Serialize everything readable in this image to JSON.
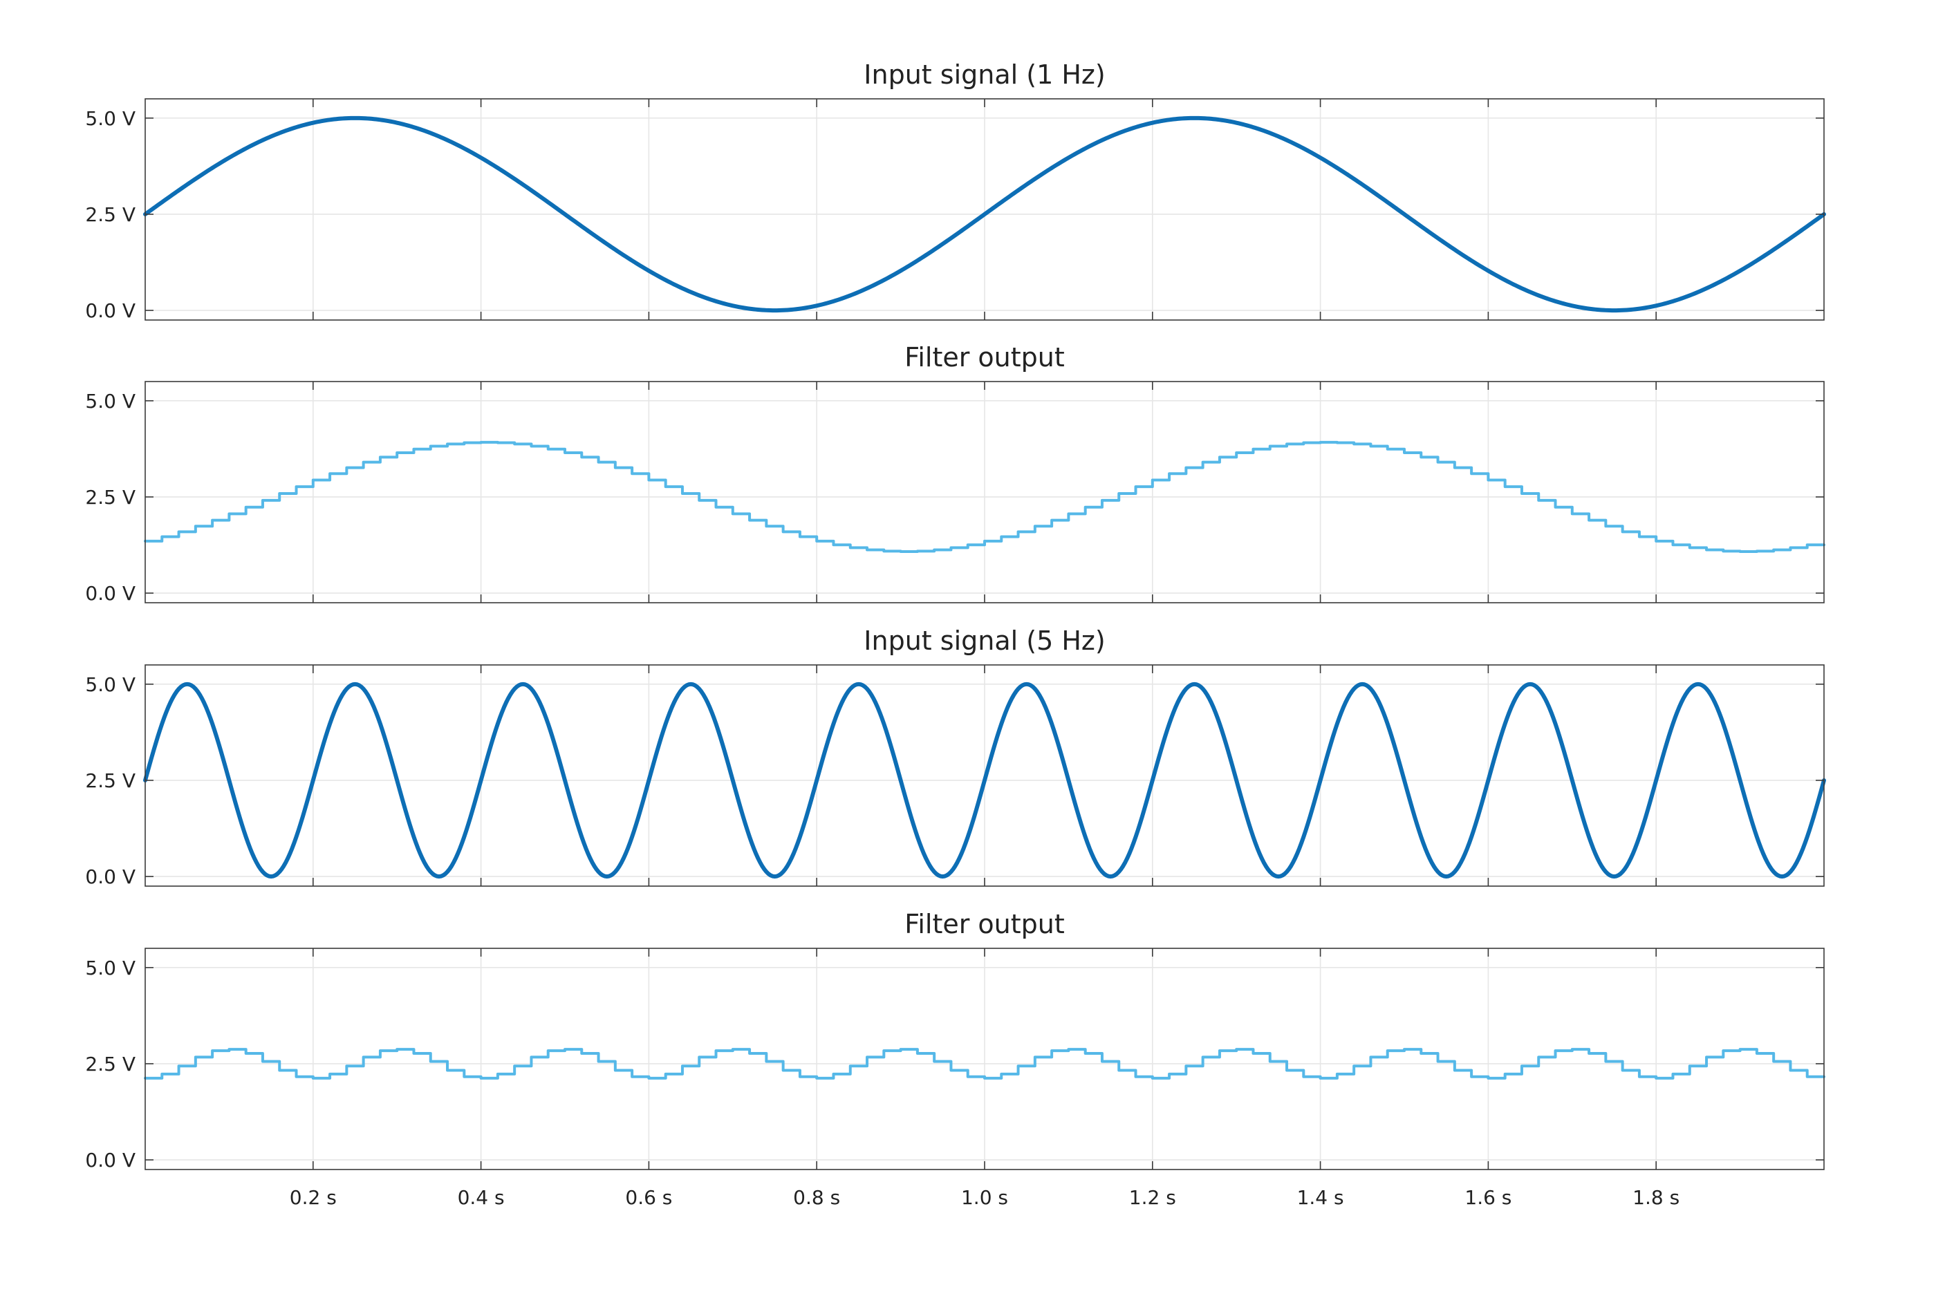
{
  "chart_data": [
    {
      "type": "line",
      "title": "Input signal (1 Hz)",
      "xlim": [
        0,
        2.0
      ],
      "ylim": [
        -0.25,
        5.5
      ],
      "x_ticks": [
        0.2,
        0.4,
        0.6,
        0.8,
        1.0,
        1.2,
        1.4,
        1.6,
        1.8
      ],
      "y_ticks": [
        0.0,
        2.5,
        5.0
      ],
      "y_tick_labels": [
        "0.0 V",
        "2.5 V",
        "5.0 V"
      ],
      "grid": true,
      "series": [
        {
          "kind": "sine",
          "offset": 2.5,
          "amplitude": 2.5,
          "frequency_hz": 1,
          "phase_deg": 0,
          "t_start": 0,
          "t_end": 2.0,
          "color": "#0d6eb5"
        }
      ]
    },
    {
      "type": "line",
      "title": "Filter output",
      "xlim": [
        0,
        2.0
      ],
      "ylim": [
        -0.25,
        5.5
      ],
      "x_ticks": [
        0.2,
        0.4,
        0.6,
        0.8,
        1.0,
        1.2,
        1.4,
        1.6,
        1.8
      ],
      "y_ticks": [
        0.0,
        2.5,
        5.0
      ],
      "y_tick_labels": [
        "0.0 V",
        "2.5 V",
        "5.0 V"
      ],
      "grid": true,
      "series": [
        {
          "kind": "sine_stepped",
          "offset": 2.5,
          "amplitude": 1.42,
          "frequency_hz": 1,
          "phase_deg": -54,
          "step_s": 0.02,
          "t_start": 0,
          "t_end": 2.0,
          "color": "#55b8e8"
        }
      ]
    },
    {
      "type": "line",
      "title": "Input signal (5 Hz)",
      "xlim": [
        0,
        2.0
      ],
      "ylim": [
        -0.25,
        5.5
      ],
      "x_ticks": [
        0.2,
        0.4,
        0.6,
        0.8,
        1.0,
        1.2,
        1.4,
        1.6,
        1.8
      ],
      "y_ticks": [
        0.0,
        2.5,
        5.0
      ],
      "y_tick_labels": [
        "0.0 V",
        "2.5 V",
        "5.0 V"
      ],
      "grid": true,
      "series": [
        {
          "kind": "sine",
          "offset": 2.5,
          "amplitude": 2.5,
          "frequency_hz": 5,
          "phase_deg": 0,
          "t_start": 0,
          "t_end": 2.0,
          "color": "#0d6eb5"
        }
      ]
    },
    {
      "type": "line",
      "title": "Filter output",
      "xlim": [
        0,
        2.0
      ],
      "ylim": [
        -0.25,
        5.5
      ],
      "x_ticks": [
        0.2,
        0.4,
        0.6,
        0.8,
        1.0,
        1.2,
        1.4,
        1.6,
        1.8
      ],
      "x_tick_labels": [
        "0.2 s",
        "0.4 s",
        "0.6 s",
        "0.8 s",
        "1.0 s",
        "1.2 s",
        "1.4 s",
        "1.6 s",
        "1.8 s"
      ],
      "y_ticks": [
        0.0,
        2.5,
        5.0
      ],
      "y_tick_labels": [
        "0.0 V",
        "2.5 V",
        "5.0 V"
      ],
      "grid": true,
      "series": [
        {
          "kind": "sine_stepped",
          "offset": 2.5,
          "amplitude": 0.38,
          "frequency_hz": 5,
          "phase_deg": -81,
          "step_s": 0.02,
          "t_start": 0,
          "t_end": 2.0,
          "color": "#55b8e8"
        }
      ]
    }
  ]
}
